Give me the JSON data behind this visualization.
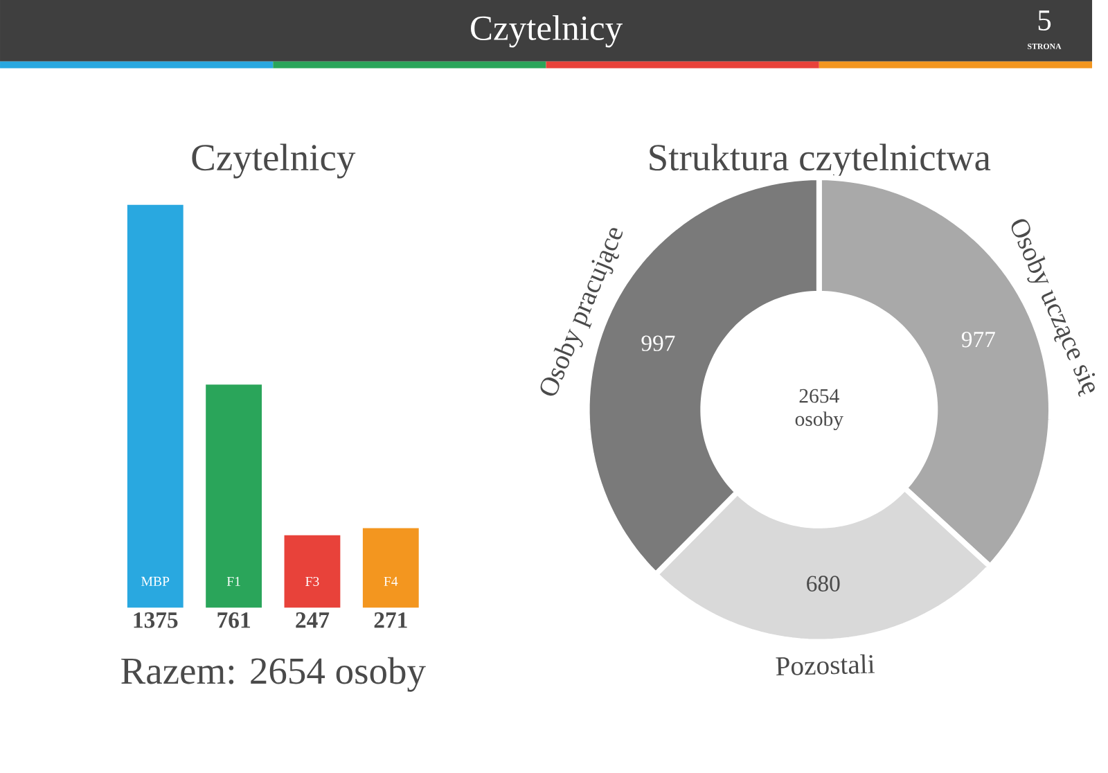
{
  "chart_data": [
    {
      "type": "bar",
      "title": "Czytelnicy",
      "categories": [
        "MBP",
        "F1",
        "F3",
        "F4"
      ],
      "values": [
        1375,
        761,
        247,
        271
      ],
      "colors": [
        "#29a8e0",
        "#2aa55a",
        "#e8423a",
        "#f3961f"
      ],
      "data_labels": true,
      "annotations": [
        "Czytelnicy",
        "5",
        "STRONA",
        "Razem: 2654 osoby"
      ]
    },
    {
      "type": "donut",
      "title": "Struktura czytelnictwa",
      "categories": [
        "Osoby uczące się",
        "Pozostali",
        "Osoby pracujące"
      ],
      "values": [
        977,
        680,
        997
      ],
      "colors": [
        "#a9a9a9",
        "#d9d9d9",
        "#7a7a7a"
      ],
      "data_labels": true,
      "annotations": [
        "2654 osoby"
      ]
    }
  ]
}
